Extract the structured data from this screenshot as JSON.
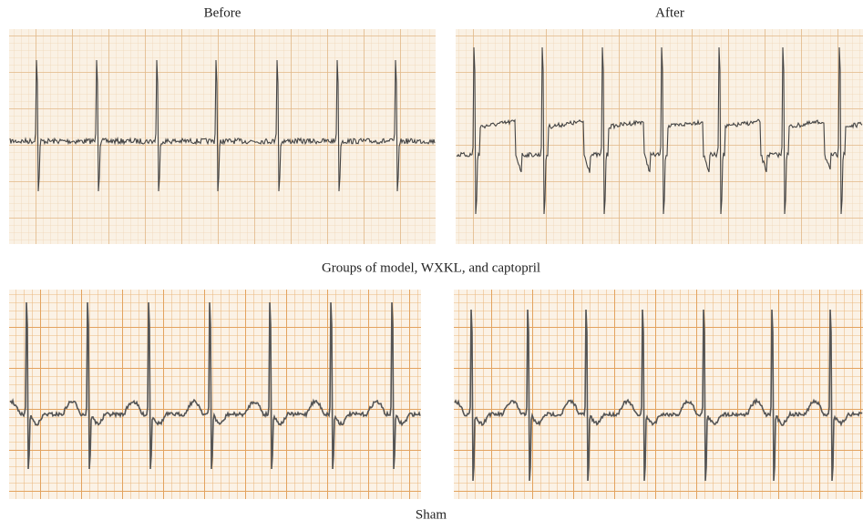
{
  "labels": {
    "before": "Before",
    "after": "After",
    "group_caption": "Groups of model, WXKL, and captopril",
    "sham_caption": "Sham"
  }
}
